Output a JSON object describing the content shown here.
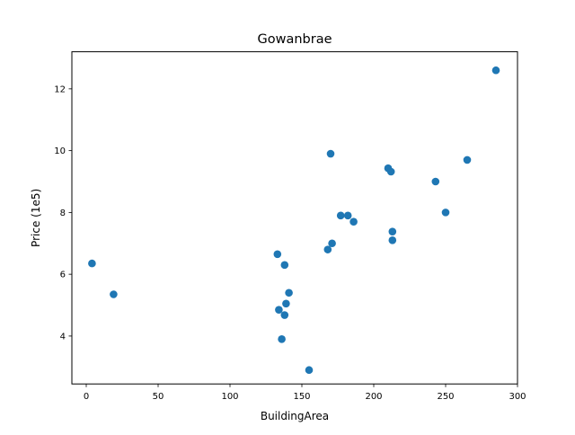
{
  "chart_data": {
    "type": "scatter",
    "title": "Gowanbrae",
    "xlabel": "BuildingArea",
    "ylabel": "Price (1e5)",
    "xlim": [
      -10,
      300
    ],
    "ylim": [
      2.45,
      13.2
    ],
    "xticks": [
      0,
      50,
      100,
      150,
      200,
      250,
      300
    ],
    "xtick_labels": [
      "0",
      "50",
      "100",
      "150",
      "200",
      "250",
      "300"
    ],
    "yticks": [
      4,
      6,
      8,
      10,
      12
    ],
    "ytick_labels": [
      "4",
      "6",
      "8",
      "10",
      "12"
    ],
    "grid": false,
    "legend": "none",
    "color": "#1f77b4",
    "series": [
      {
        "x": [
          4,
          19,
          133,
          138,
          170,
          177,
          182,
          186,
          168,
          171,
          210,
          212,
          243,
          265,
          285,
          213,
          213,
          250,
          141,
          139,
          134,
          138,
          136,
          155
        ],
        "y": [
          6.35,
          5.35,
          6.65,
          6.3,
          9.9,
          7.9,
          7.9,
          7.7,
          6.8,
          7.0,
          9.43,
          9.32,
          9.0,
          9.7,
          12.6,
          7.38,
          7.1,
          8.0,
          5.4,
          5.05,
          4.85,
          4.68,
          3.9,
          2.9
        ]
      }
    ]
  }
}
